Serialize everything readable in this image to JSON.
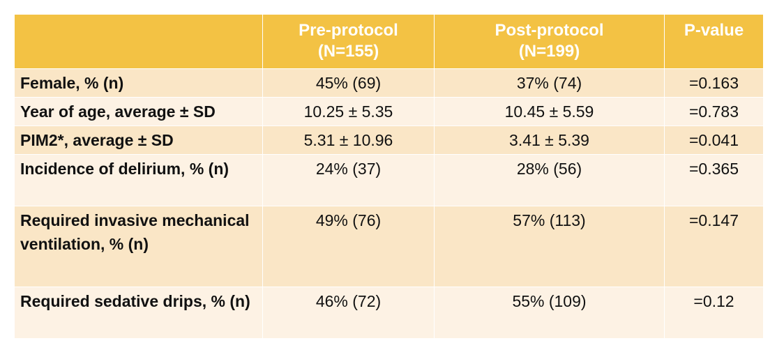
{
  "table": {
    "headers": [
      {
        "lines": [
          "",
          ""
        ]
      },
      {
        "lines": [
          "Pre-protocol",
          "(N=155)"
        ]
      },
      {
        "lines": [
          "Post-protocol",
          "(N=199)"
        ]
      },
      {
        "lines": [
          "P-value",
          ""
        ]
      }
    ],
    "rows": [
      {
        "label": "Female, % (n)",
        "pre": "45% (69)",
        "post": "37% (74)",
        "p": "=0.163"
      },
      {
        "label": "Year of age, average ±  SD",
        "pre": "10.25 ± 5.35",
        "post": "10.45 ± 5.59",
        "p": "=0.783"
      },
      {
        "label": "PIM2*, average ±  SD",
        "pre": "5.31 ± 10.96",
        "post": "3.41 ± 5.39",
        "p": "=0.041"
      },
      {
        "label": "Incidence of delirium, % (n)",
        "pre": "24% (37)",
        "post": "28% (56)",
        "p": "=0.365"
      },
      {
        "label": "Required invasive mechanical ventilation, % (n)",
        "pre": "49% (76)",
        "post": "57% (113)",
        "p": "=0.147"
      },
      {
        "label": "Required sedative drips, % (n)",
        "pre": "46% (72)",
        "post": "55% (109)",
        "p": "=0.12"
      }
    ]
  },
  "colors": {
    "header_bg": "#f3c244",
    "header_text": "#ffffff",
    "row_odd_bg": "#fae6c6",
    "row_even_bg": "#fdf2e4",
    "body_text": "#111111"
  }
}
